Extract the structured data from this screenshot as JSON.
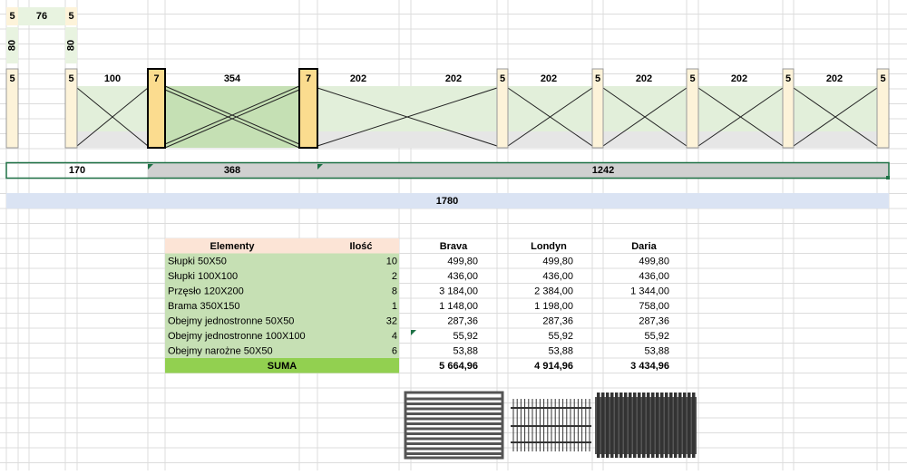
{
  "diagram": {
    "top_labels": [
      "5",
      "76",
      "5"
    ],
    "vertical_labels": [
      "80",
      "80"
    ],
    "posts": [
      "5",
      "5",
      "7",
      "7",
      "5",
      "5",
      "5",
      "5",
      "5"
    ],
    "spans": [
      "100",
      "354",
      "202",
      "202",
      "202",
      "202",
      "202",
      "202"
    ],
    "sections": [
      "170",
      "368",
      "1242"
    ],
    "total": "1780"
  },
  "table": {
    "header": [
      "Elementy",
      "Ilość",
      "Brava",
      "Londyn",
      "Daria"
    ],
    "rows": [
      [
        "Słupki 50X50",
        "10",
        "499,80",
        "499,80",
        "499,80"
      ],
      [
        "Słupki 100X100",
        "2",
        "436,00",
        "436,00",
        "436,00"
      ],
      [
        "Przęsło 120X200",
        "8",
        "3 184,00",
        "2 384,00",
        "1 344,00"
      ],
      [
        "Brama 350X150",
        "1",
        "1 148,00",
        "1 198,00",
        "758,00"
      ],
      [
        "Obejmy jednostronne 50X50",
        "32",
        "287,36",
        "287,36",
        "287,36"
      ],
      [
        "Obejmy jednostronne 100X100",
        "4",
        "55,92",
        "55,92",
        "55,92"
      ],
      [
        "Obejmy narożne 50X50",
        "6",
        "53,88",
        "53,88",
        "53,88"
      ]
    ],
    "sum": [
      "SUMA",
      "5 664,96",
      "4 914,96",
      "3 434,96"
    ]
  }
}
